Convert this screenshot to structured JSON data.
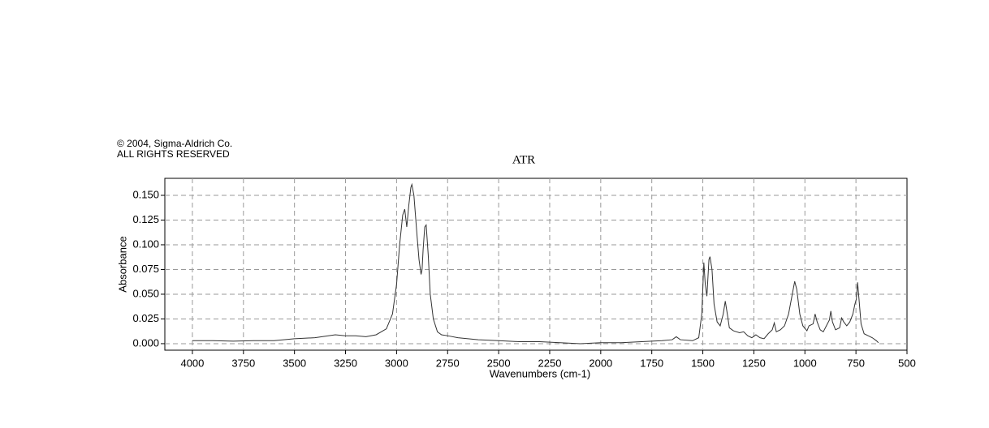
{
  "chart_data": {
    "type": "line",
    "copyright": [
      "© 2004, Sigma-Aldrich Co.",
      "ALL RIGHTS RESERVED"
    ],
    "title": "ATR",
    "x_label": "Wavenumbers (cm-1)",
    "y_label": "Absorbance",
    "color": "#333333",
    "grid": true,
    "xlim": [
      4135,
      500
    ],
    "ylim": [
      -0.0066,
      0.1672
    ],
    "xticks": [
      4000,
      3750,
      3500,
      3250,
      3000,
      2750,
      2500,
      2250,
      2000,
      1750,
      1500,
      1250,
      1000,
      750,
      500
    ],
    "yticks": [
      {
        "value": 0,
        "label": "0.000"
      },
      {
        "value": 0.025,
        "label": "0.025"
      },
      {
        "value": 0.05,
        "label": "0.050"
      },
      {
        "value": 0.075,
        "label": "0.075"
      },
      {
        "value": 0.1,
        "label": "0.100"
      },
      {
        "value": 0.125,
        "label": "0.125"
      },
      {
        "value": 0.15,
        "label": "0.150"
      }
    ],
    "x": [
      4000,
      3900,
      3800,
      3700,
      3600,
      3500,
      3400,
      3300,
      3250,
      3200,
      3150,
      3100,
      3050,
      3020,
      3000,
      2985,
      2970,
      2960,
      2950,
      2940,
      2930,
      2925,
      2915,
      2900,
      2890,
      2880,
      2875,
      2870,
      2862,
      2855,
      2845,
      2835,
      2820,
      2800,
      2780,
      2750,
      2700,
      2600,
      2500,
      2400,
      2300,
      2200,
      2100,
      2000,
      1900,
      1800,
      1700,
      1650,
      1630,
      1610,
      1550,
      1520,
      1505,
      1495,
      1488,
      1480,
      1470,
      1465,
      1455,
      1445,
      1430,
      1415,
      1400,
      1390,
      1380,
      1370,
      1350,
      1320,
      1300,
      1280,
      1260,
      1240,
      1220,
      1200,
      1180,
      1160,
      1150,
      1140,
      1120,
      1100,
      1080,
      1060,
      1050,
      1040,
      1025,
      1010,
      990,
      980,
      960,
      950,
      940,
      925,
      910,
      895,
      880,
      873,
      865,
      850,
      830,
      820,
      810,
      795,
      780,
      765,
      755,
      748,
      742,
      735,
      725,
      710,
      690,
      670,
      650,
      640
    ],
    "values": [
      0.003,
      0.003,
      0.0025,
      0.003,
      0.003,
      0.005,
      0.006,
      0.009,
      0.008,
      0.008,
      0.007,
      0.009,
      0.015,
      0.03,
      0.06,
      0.1,
      0.13,
      0.136,
      0.118,
      0.14,
      0.158,
      0.161,
      0.15,
      0.11,
      0.085,
      0.07,
      0.075,
      0.095,
      0.118,
      0.12,
      0.09,
      0.05,
      0.025,
      0.012,
      0.009,
      0.008,
      0.006,
      0.004,
      0.003,
      0.002,
      0.002,
      0.001,
      0,
      0.001,
      0.001,
      0.002,
      0.003,
      0.004,
      0.007,
      0.004,
      0.003,
      0.006,
      0.03,
      0.082,
      0.06,
      0.048,
      0.085,
      0.088,
      0.075,
      0.04,
      0.022,
      0.018,
      0.03,
      0.043,
      0.03,
      0.016,
      0.013,
      0.011,
      0.012,
      0.008,
      0.006,
      0.009,
      0.006,
      0.005,
      0.01,
      0.014,
      0.021,
      0.012,
      0.014,
      0.018,
      0.03,
      0.052,
      0.063,
      0.055,
      0.03,
      0.018,
      0.013,
      0.018,
      0.02,
      0.03,
      0.022,
      0.014,
      0.012,
      0.018,
      0.024,
      0.033,
      0.022,
      0.014,
      0.016,
      0.026,
      0.022,
      0.018,
      0.022,
      0.03,
      0.04,
      0.045,
      0.062,
      0.045,
      0.02,
      0.01,
      0.008,
      0.006,
      0.003,
      0.001
    ]
  }
}
